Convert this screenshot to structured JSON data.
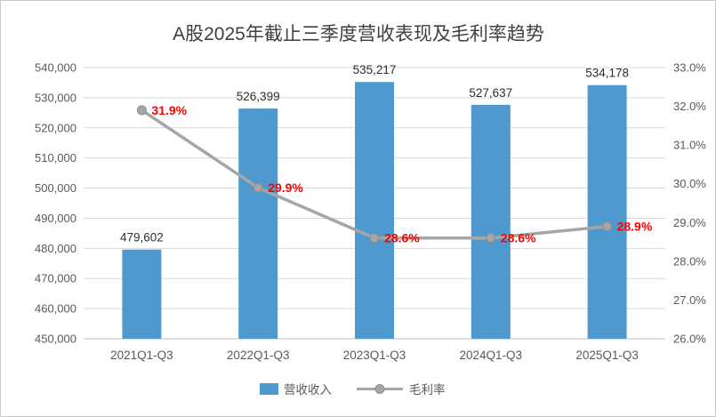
{
  "chart_data": {
    "type": "combo",
    "title": "A股2025年截止三季度营收表现及毛利率趋势",
    "categories": [
      "2021Q1-Q3",
      "2022Q1-Q3",
      "2023Q1-Q3",
      "2024Q1-Q3",
      "2025Q1-Q3"
    ],
    "series": [
      {
        "name": "营收收入",
        "type": "bar",
        "axis": "left",
        "values": [
          479602,
          526399,
          535217,
          527637,
          534178
        ],
        "labels": [
          "479,602",
          "526,399",
          "535,217",
          "527,637",
          "534,178"
        ],
        "color": "#4e9acf"
      },
      {
        "name": "毛利率",
        "type": "line",
        "axis": "right",
        "values": [
          31.9,
          29.9,
          28.6,
          28.6,
          28.9
        ],
        "labels": [
          "31.9%",
          "29.9%",
          "28.6%",
          "28.6%",
          "28.9%"
        ],
        "color": "#a6a6a6",
        "marker_border": "#8c8c8c",
        "label_color": "#ff0000"
      }
    ],
    "left_axis": {
      "min": 450000,
      "max": 540000,
      "step": 10000,
      "labels": [
        "450,000",
        "460,000",
        "470,000",
        "480,000",
        "490,000",
        "500,000",
        "510,000",
        "520,000",
        "530,000",
        "540,000"
      ]
    },
    "right_axis": {
      "min": 26,
      "max": 33,
      "step": 1,
      "labels": [
        "26.0%",
        "27.0%",
        "28.0%",
        "29.0%",
        "30.0%",
        "31.0%",
        "32.0%",
        "33.0%"
      ]
    },
    "grid": "on",
    "legend_position": "bottom"
  }
}
